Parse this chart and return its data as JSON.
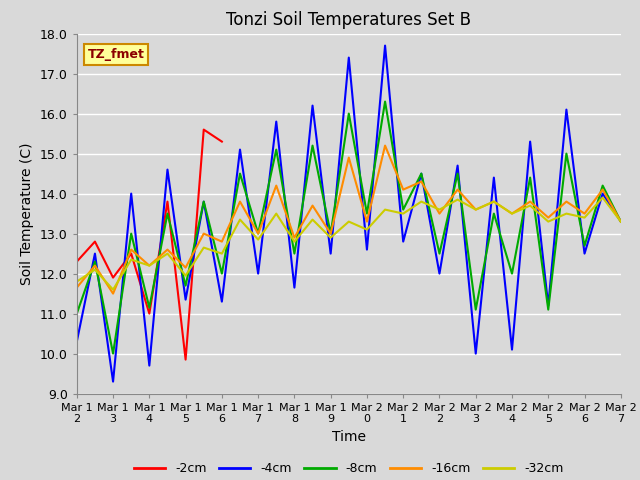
{
  "title": "Tonzi Soil Temperatures Set B",
  "xlabel": "Time",
  "ylabel": "Soil Temperature (C)",
  "ylim": [
    9.0,
    18.0
  ],
  "yticks": [
    9.0,
    10.0,
    11.0,
    12.0,
    13.0,
    14.0,
    15.0,
    16.0,
    17.0,
    18.0
  ],
  "fig_bg_color": "#d9d9d9",
  "plot_bg_color": "#d9d9d9",
  "grid_color": "#ffffff",
  "annotation_text": "TZ_fmet",
  "annotation_color": "#8b0000",
  "annotation_bg": "#ffff99",
  "annotation_border": "#cc8800",
  "series": [
    {
      "label": "-2cm",
      "color": "#ff0000",
      "x_days": [
        12,
        12.5,
        13,
        13.5,
        14,
        14.5,
        15,
        15.5,
        16
      ],
      "y": [
        12.3,
        12.8,
        11.9,
        12.5,
        11.0,
        13.8,
        9.85,
        15.6,
        15.3
      ]
    },
    {
      "label": "-4cm",
      "color": "#0000ff",
      "x_days": [
        12,
        12.5,
        13,
        13.5,
        14,
        14.5,
        15,
        15.5,
        16,
        16.5,
        17,
        17.5,
        18,
        18.5,
        19,
        19.5,
        20,
        20.5,
        21,
        21.5,
        22,
        22.5,
        23,
        23.5,
        24,
        24.5,
        25,
        25.5,
        26,
        26.5,
        27
      ],
      "y": [
        10.3,
        12.5,
        9.3,
        14.0,
        9.7,
        14.6,
        11.35,
        13.8,
        11.3,
        15.1,
        12.0,
        15.8,
        11.65,
        16.2,
        12.5,
        17.4,
        12.6,
        17.7,
        12.8,
        14.5,
        12.0,
        14.7,
        10.0,
        14.4,
        10.1,
        15.3,
        11.2,
        16.1,
        12.5,
        14.0,
        13.3
      ]
    },
    {
      "label": "-8cm",
      "color": "#00aa00",
      "x_days": [
        12,
        12.5,
        13,
        13.5,
        14,
        14.5,
        15,
        15.5,
        16,
        16.5,
        17,
        17.5,
        18,
        18.5,
        19,
        19.5,
        20,
        20.5,
        21,
        21.5,
        22,
        22.5,
        23,
        23.5,
        24,
        24.5,
        25,
        25.5,
        26,
        26.5,
        27
      ],
      "y": [
        11.0,
        12.3,
        10.0,
        13.0,
        11.15,
        13.5,
        11.7,
        13.8,
        12.0,
        14.5,
        13.0,
        15.1,
        12.5,
        15.2,
        13.0,
        16.0,
        13.5,
        16.3,
        13.6,
        14.5,
        12.5,
        14.5,
        11.1,
        13.5,
        12.0,
        14.4,
        11.1,
        15.0,
        12.7,
        14.2,
        13.3
      ]
    },
    {
      "label": "-16cm",
      "color": "#ff8c00",
      "x_days": [
        12,
        12.5,
        13,
        13.5,
        14,
        14.5,
        15,
        15.5,
        16,
        16.5,
        17,
        17.5,
        18,
        18.5,
        19,
        19.5,
        20,
        20.5,
        21,
        21.5,
        22,
        22.5,
        23,
        23.5,
        24,
        24.5,
        25,
        25.5,
        26,
        26.5,
        27
      ],
      "y": [
        11.65,
        12.2,
        11.5,
        12.6,
        12.2,
        12.6,
        12.15,
        13.0,
        12.8,
        13.8,
        13.0,
        14.2,
        12.9,
        13.7,
        13.0,
        14.9,
        13.3,
        15.2,
        14.1,
        14.3,
        13.5,
        14.1,
        13.6,
        13.8,
        13.5,
        13.8,
        13.4,
        13.8,
        13.5,
        14.1,
        13.3
      ]
    },
    {
      "label": "-32cm",
      "color": "#cccc00",
      "x_days": [
        12,
        12.5,
        13,
        13.5,
        14,
        14.5,
        15,
        15.5,
        16,
        16.5,
        17,
        17.5,
        18,
        18.5,
        19,
        19.5,
        20,
        20.5,
        21,
        21.5,
        22,
        22.5,
        23,
        23.5,
        24,
        24.5,
        25,
        25.5,
        26,
        26.5,
        27
      ],
      "y": [
        11.8,
        12.1,
        11.6,
        12.35,
        12.2,
        12.5,
        11.95,
        12.65,
        12.5,
        13.35,
        12.85,
        13.5,
        12.8,
        13.35,
        12.9,
        13.3,
        13.1,
        13.6,
        13.5,
        13.8,
        13.6,
        13.85,
        13.6,
        13.8,
        13.5,
        13.7,
        13.3,
        13.5,
        13.4,
        13.9,
        13.3
      ]
    }
  ],
  "xtick_days": [
    12,
    13,
    14,
    15,
    16,
    17,
    18,
    19,
    20,
    21,
    22,
    23,
    24,
    25,
    26,
    27
  ],
  "xtick_labels": [
    "Mar 1\n2",
    "Mar 1\n3",
    "Mar 1\n4",
    "Mar 1\n5",
    "Mar 1\n6",
    "Mar 1\n7",
    "Mar 1\n8",
    "Mar 1\n9",
    "Mar 2\n0",
    "Mar 2\n1",
    "Mar 2\n2",
    "Mar 2\n3",
    "Mar 2\n4",
    "Mar 2\n5",
    "Mar 2\n6",
    "Mar 2\n7"
  ]
}
